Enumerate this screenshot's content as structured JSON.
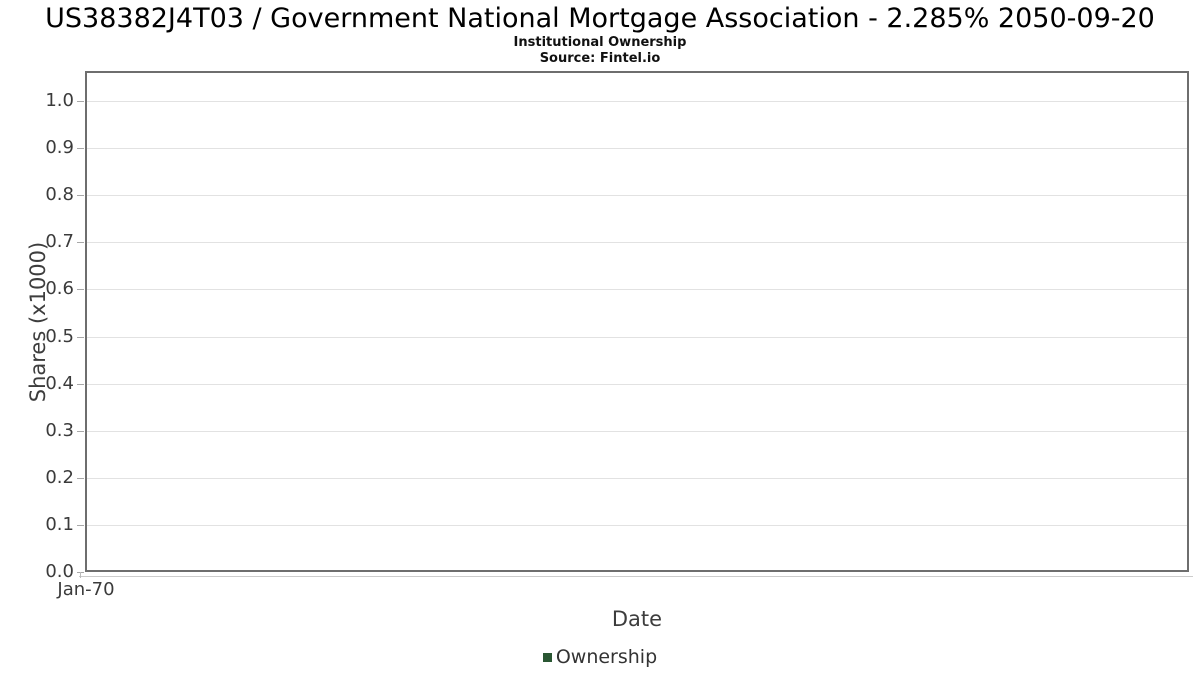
{
  "chart_data": {
    "type": "bar",
    "title": "US38382J4T03 / Government National Mortgage Association - 2.285% 2050-09-20",
    "subtitle": "Institutional Ownership",
    "source": "Source: Fintel.io",
    "xlabel": "Date",
    "ylabel": "Shares (x1000)",
    "ylim": [
      0.0,
      1.0
    ],
    "y_tick_labels": [
      "0.0",
      "0.1",
      "0.2",
      "0.3",
      "0.4",
      "0.5",
      "0.6",
      "0.7",
      "0.8",
      "0.9",
      "1.0"
    ],
    "x_tick_labels": [
      "Jan-70"
    ],
    "grid": true,
    "legend": {
      "position": "bottom-center",
      "entries": [
        {
          "label": "Ownership",
          "color": "#2a5733"
        }
      ]
    },
    "series": [
      {
        "name": "Ownership",
        "x": [],
        "values": []
      }
    ]
  }
}
